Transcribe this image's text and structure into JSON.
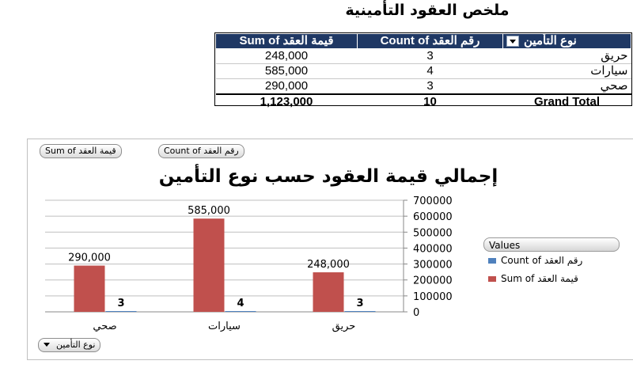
{
  "title": "ملخص العقود التأمينية",
  "pivot": {
    "headers": {
      "sum": "Sum of قيمة العقد",
      "count": "Count of رقم العقد",
      "type": "نوع التأمين"
    },
    "rows": [
      {
        "type": "حريق",
        "count": "3",
        "sum": "248,000"
      },
      {
        "type": "سيارات",
        "count": "4",
        "sum": "585,000"
      },
      {
        "type": "صحي",
        "count": "3",
        "sum": "290,000"
      }
    ],
    "total": {
      "label": "Grand Total",
      "count": "10",
      "sum": "1,123,000"
    }
  },
  "chart": {
    "field_buttons": {
      "sum": "Sum of قيمة العقد",
      "count": "Count of رقم العقد"
    },
    "axis_button": "نوع التأمين",
    "legend_title": "Values"
  },
  "colors": {
    "header_bg": "#1f3864",
    "sum_series": "#c0504d",
    "count_series": "#4f81bd"
  },
  "chart_data": {
    "type": "bar",
    "title": "إجمالي قيمة العقود حسب نوع التأمين",
    "categories": [
      "صحي",
      "سيارات",
      "حريق"
    ],
    "series": [
      {
        "name": "Sum of قيمة العقد",
        "values": [
          290000,
          585000,
          248000
        ],
        "labels": [
          "290,000",
          "585,000",
          "248,000"
        ],
        "color": "#c0504d"
      },
      {
        "name": "Count of رقم العقد",
        "values": [
          3,
          4,
          3
        ],
        "labels": [
          "3",
          "4",
          "3"
        ],
        "color": "#4f81bd"
      }
    ],
    "yticks": [
      "700000",
      "600000",
      "500000",
      "400000",
      "300000",
      "200000",
      "100000",
      "0"
    ],
    "ylim": [
      0,
      700000
    ],
    "y_axis_side": "right",
    "grid": true,
    "legend_position": "right"
  }
}
